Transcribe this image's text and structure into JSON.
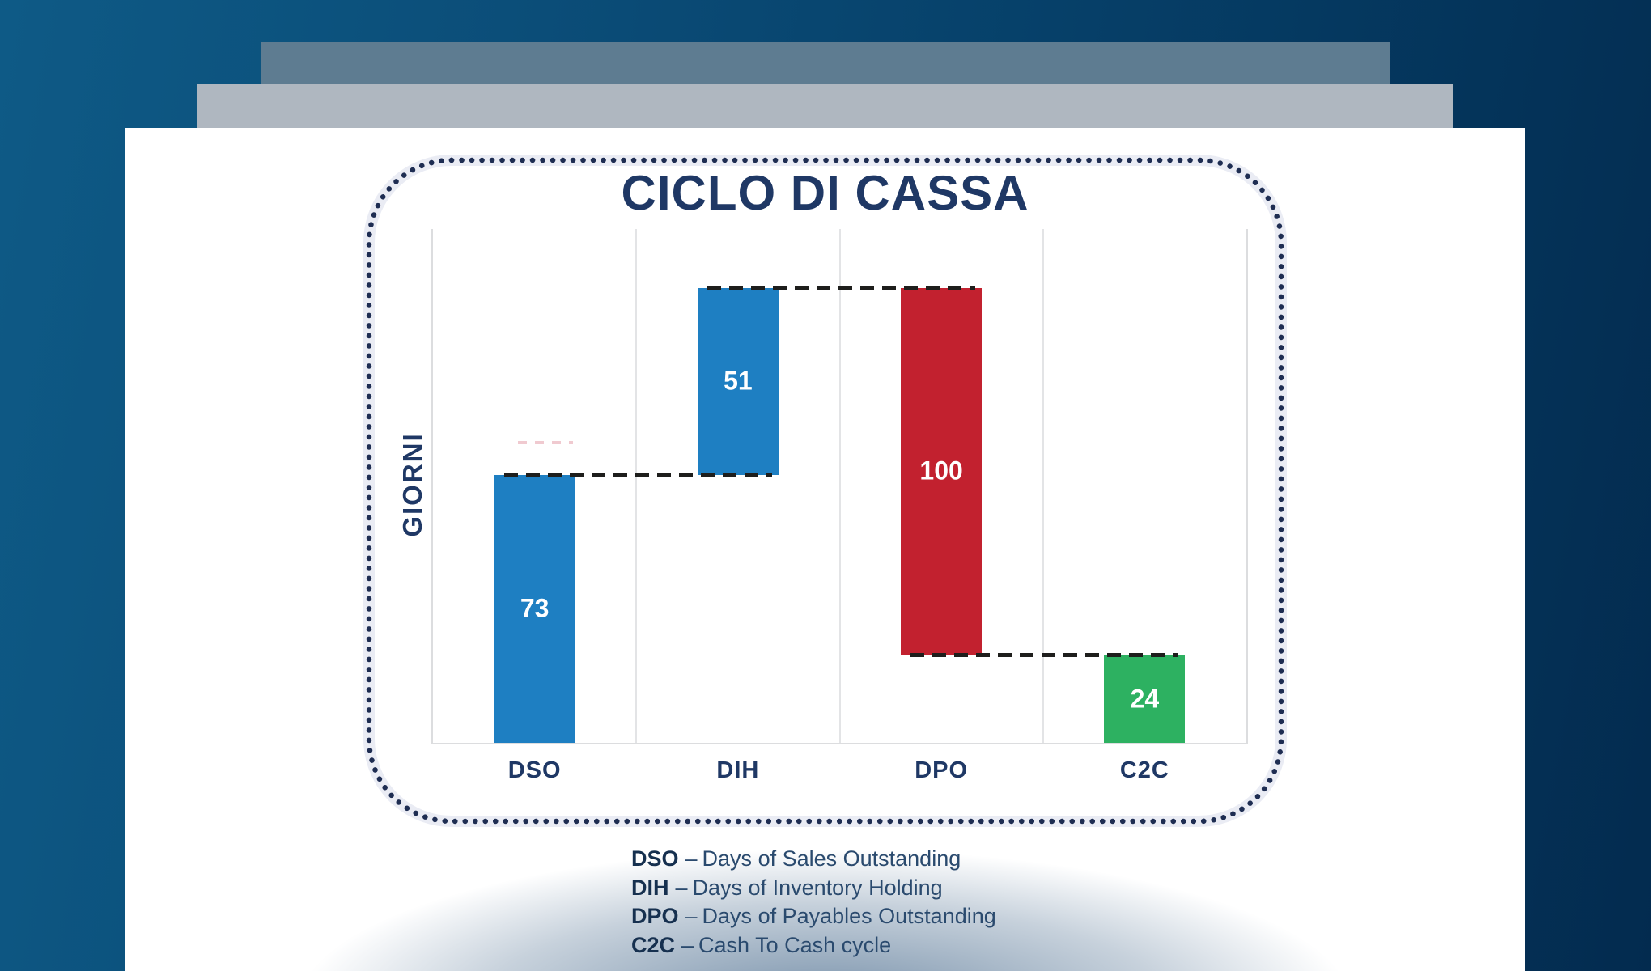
{
  "chart_data": {
    "type": "bar",
    "variant": "waterfall",
    "title": "CICLO DI CASSA",
    "ylabel": "GIORNI",
    "xlabel": "",
    "ymax": 140,
    "grid": "vertical category separators only, no horizontal gridlines, no y tick labels",
    "categories": [
      "DSO",
      "DIH",
      "DPO",
      "C2C"
    ],
    "bars": [
      {
        "label": "DSO",
        "value": 73,
        "start": 0,
        "end": 73,
        "color": "#1e7fc2"
      },
      {
        "label": "DIH",
        "value": 51,
        "start": 73,
        "end": 124,
        "color": "#1e7fc2"
      },
      {
        "label": "DPO",
        "value": 100,
        "start": 124,
        "end": 24,
        "color": "#c2212f"
      },
      {
        "label": "C2C",
        "value": 24,
        "start": 0,
        "end": 24,
        "color": "#2db161"
      }
    ],
    "connectors": [
      {
        "level": 73,
        "from": 0,
        "to": 1
      },
      {
        "level": 124,
        "from": 1,
        "to": 2
      },
      {
        "level": 24,
        "from": 2,
        "to": 3
      }
    ],
    "value_label_color": "#ffffff"
  },
  "legend": {
    "items": [
      {
        "abbr": "DSO",
        "sep": "–",
        "desc": "Days of Sales Outstanding"
      },
      {
        "abbr": "DIH",
        "sep": "–",
        "desc": "Days of Inventory Holding"
      },
      {
        "abbr": "DPO",
        "sep": "–",
        "desc": "Days of Payables Outstanding"
      },
      {
        "abbr": "C2C",
        "sep": "–",
        "desc": "Cash To Cash cycle"
      }
    ]
  },
  "colors": {
    "background_gradient_start": "#0e5a86",
    "background_gradient_end": "#032b4f",
    "slide_back": "#5e7c91",
    "slide_mid": "#afb7c0",
    "slide_front": "#ffffff",
    "accent_navy": "#1f3865",
    "dotted_border": "#1e2d52",
    "bar_blue": "#1e7fc2",
    "bar_red": "#c2212f",
    "bar_green": "#2db161",
    "gridline": "#dcdddf",
    "connector_dash": "#1e1e1c"
  }
}
